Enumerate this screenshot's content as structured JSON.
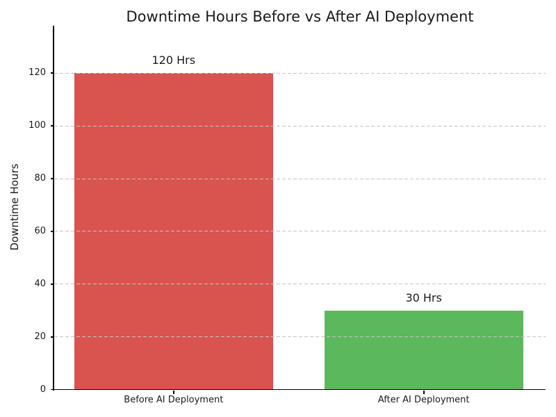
{
  "figure": {
    "background": "#ffffff",
    "text_color": "#1a1a1a",
    "axis_color": "#000000",
    "gridline_color": "#c4c4c4"
  },
  "chart_data": {
    "type": "bar",
    "title": "Downtime Hours Before vs After AI Deployment",
    "xlabel": "",
    "ylabel": "Downtime Hours",
    "categories": [
      "Before AI Deployment",
      "After AI Deployment"
    ],
    "values": [
      120,
      30
    ],
    "bar_labels": [
      "120 Hrs",
      "30 Hrs"
    ],
    "bar_colors": [
      "#d9534f",
      "#5cb85c"
    ],
    "yticks": [
      0,
      20,
      40,
      60,
      80,
      100,
      120
    ],
    "ylim": [
      0,
      138
    ],
    "grid": "horizontal-dashed",
    "grid_over_bars": true,
    "legend": "none"
  }
}
